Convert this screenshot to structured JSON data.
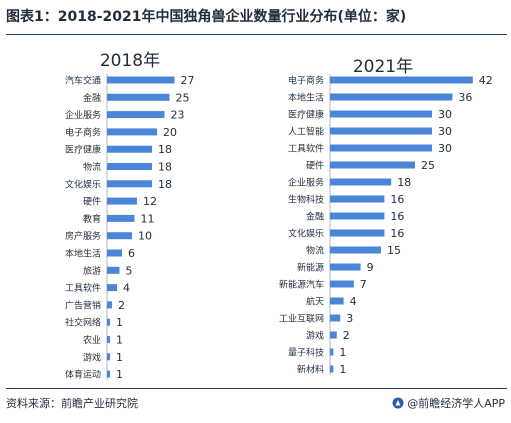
{
  "header": {
    "title": "图表1：2018-2021年中国独角兽企业数量行业分布(单位：家)"
  },
  "footer": {
    "source": "资料来源：前瞻产业研究院",
    "brand": "@前瞻经济学人APP"
  },
  "colors": {
    "bar": "#4a86d8",
    "text": "#1f2d3d",
    "rule": "#1f3c73"
  },
  "chart_data": [
    {
      "type": "bar",
      "orientation": "horizontal",
      "title": "2018年",
      "categories": [
        "汽车交通",
        "金融",
        "企业服务",
        "电子商务",
        "医疗健康",
        "物流",
        "文化娱乐",
        "硬件",
        "教育",
        "房产服务",
        "本地生活",
        "旅游",
        "工具软件",
        "广告营销",
        "社交网络",
        "农业",
        "游戏",
        "体育运动"
      ],
      "values": [
        27,
        25,
        23,
        20,
        18,
        18,
        18,
        12,
        11,
        10,
        6,
        5,
        4,
        2,
        1,
        1,
        1,
        1
      ]
    },
    {
      "type": "bar",
      "orientation": "horizontal",
      "title": "2021年",
      "categories": [
        "电子商务",
        "本地生活",
        "医疗健康",
        "人工智能",
        "工具软件",
        "硬件",
        "企业服务",
        "生物科技",
        "金融",
        "文化娱乐",
        "物流",
        "新能源",
        "新能源汽车",
        "航天",
        "工业互联网",
        "游戏",
        "量子科技",
        "新材料"
      ],
      "values": [
        42,
        36,
        30,
        30,
        30,
        25,
        18,
        16,
        16,
        16,
        15,
        9,
        7,
        4,
        3,
        2,
        1,
        1
      ]
    }
  ]
}
